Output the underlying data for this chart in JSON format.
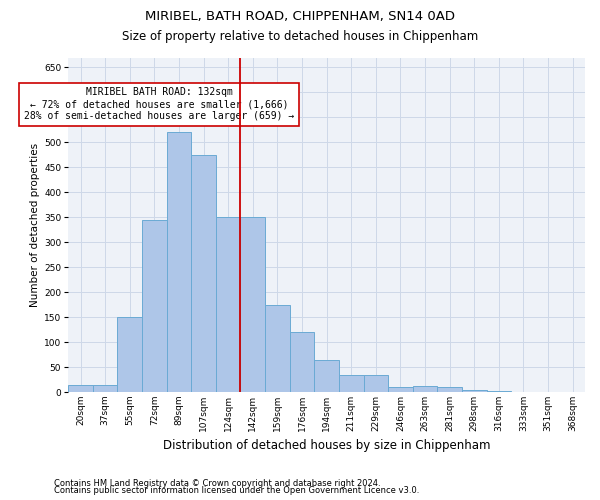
{
  "title": "MIRIBEL, BATH ROAD, CHIPPENHAM, SN14 0AD",
  "subtitle": "Size of property relative to detached houses in Chippenham",
  "xlabel": "Distribution of detached houses by size in Chippenham",
  "ylabel": "Number of detached properties",
  "categories": [
    "20sqm",
    "37sqm",
    "55sqm",
    "72sqm",
    "89sqm",
    "107sqm",
    "124sqm",
    "142sqm",
    "159sqm",
    "176sqm",
    "194sqm",
    "211sqm",
    "229sqm",
    "246sqm",
    "263sqm",
    "281sqm",
    "298sqm",
    "316sqm",
    "333sqm",
    "351sqm",
    "368sqm"
  ],
  "values": [
    15,
    15,
    150,
    345,
    520,
    475,
    350,
    350,
    175,
    120,
    65,
    35,
    35,
    10,
    12,
    10,
    5,
    2,
    1,
    1,
    1
  ],
  "bar_color": "#aec6e8",
  "bar_edge_color": "#6aaad4",
  "vline_color": "#cc0000",
  "annotation_text": "MIRIBEL BATH ROAD: 132sqm\n← 72% of detached houses are smaller (1,666)\n28% of semi-detached houses are larger (659) →",
  "annotation_box_color": "white",
  "annotation_box_edge_color": "#cc0000",
  "ylim": [
    0,
    670
  ],
  "yticks": [
    0,
    50,
    100,
    150,
    200,
    250,
    300,
    350,
    400,
    450,
    500,
    550,
    600,
    650
  ],
  "grid_color": "#cdd8e8",
  "footer1": "Contains HM Land Registry data © Crown copyright and database right 2024.",
  "footer2": "Contains public sector information licensed under the Open Government Licence v3.0.",
  "background_color": "#eef2f8",
  "title_fontsize": 9.5,
  "subtitle_fontsize": 8.5,
  "ylabel_fontsize": 7.5,
  "xlabel_fontsize": 8.5,
  "tick_fontsize": 6.5,
  "annotation_fontsize": 7,
  "footer_fontsize": 6
}
